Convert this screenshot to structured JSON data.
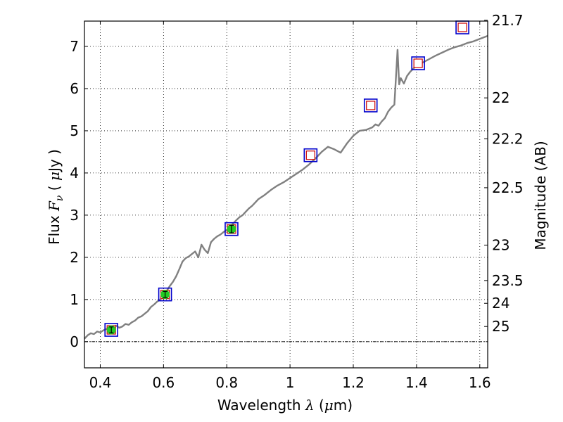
{
  "chart_data": {
    "type": "line",
    "title": "",
    "xlabel_text": "Wavelength",
    "xlabel_math": "λ",
    "xlabel_unit_open": " (",
    "xlabel_unit_math": "μ",
    "xlabel_unit_close": "m)",
    "ylabel_text": "Flux",
    "ylabel_math": "F",
    "ylabel_sub": "ν",
    "ylabel_unit_open": "( ",
    "ylabel_unit_math": "μ",
    "ylabel_unit_close": "Jy )",
    "y2label": "Magnitude (AB)",
    "xlim": [
      0.35,
      1.625
    ],
    "ylim": [
      -0.62,
      7.6
    ],
    "grid": true,
    "x_ticks": [
      0.4,
      0.6,
      0.8,
      1.0,
      1.2,
      1.4,
      1.6
    ],
    "x_tick_labels": [
      "0.4",
      "0.6",
      "0.8",
      "1",
      "1.2",
      "1.4",
      "1.6"
    ],
    "y_ticks": [
      0,
      1,
      2,
      3,
      4,
      5,
      6,
      7
    ],
    "y_tick_labels": [
      "0",
      "1",
      "2",
      "3",
      "4",
      "5",
      "6",
      "7"
    ],
    "y2_ticks": [
      {
        "label": "21.7",
        "flux": 7.62
      },
      {
        "label": "22",
        "flux": 5.78
      },
      {
        "label": "22.2",
        "flux": 4.81
      },
      {
        "label": "22.5",
        "flux": 3.65
      },
      {
        "label": "23",
        "flux": 2.29
      },
      {
        "label": "23.5",
        "flux": 1.45
      },
      {
        "label": "24",
        "flux": 0.91
      },
      {
        "label": "25",
        "flux": 0.36
      }
    ],
    "zero_line_y": 0,
    "colors": {
      "spectrum": "#808080",
      "model_box": "#0000cc",
      "model_inner": "#cc0000",
      "obs_fill": "#22cc22",
      "grid": "#000000",
      "axes": "#000000"
    },
    "series": [
      {
        "name": "model spectrum",
        "x": [
          0.35,
          0.36,
          0.37,
          0.38,
          0.39,
          0.4,
          0.41,
          0.42,
          0.43,
          0.44,
          0.45,
          0.46,
          0.47,
          0.48,
          0.49,
          0.5,
          0.51,
          0.52,
          0.53,
          0.54,
          0.55,
          0.56,
          0.57,
          0.58,
          0.59,
          0.6,
          0.61,
          0.62,
          0.63,
          0.64,
          0.65,
          0.66,
          0.67,
          0.68,
          0.69,
          0.7,
          0.71,
          0.72,
          0.73,
          0.74,
          0.75,
          0.76,
          0.77,
          0.78,
          0.79,
          0.8,
          0.81,
          0.82,
          0.83,
          0.84,
          0.85,
          0.86,
          0.87,
          0.88,
          0.89,
          0.9,
          0.92,
          0.94,
          0.96,
          0.98,
          1.0,
          1.02,
          1.04,
          1.06,
          1.08,
          1.1,
          1.12,
          1.14,
          1.16,
          1.18,
          1.2,
          1.22,
          1.24,
          1.26,
          1.27,
          1.28,
          1.29,
          1.3,
          1.31,
          1.32,
          1.33,
          1.34,
          1.345,
          1.35,
          1.36,
          1.37,
          1.38,
          1.4,
          1.42,
          1.44,
          1.46,
          1.48,
          1.5,
          1.52,
          1.54,
          1.56,
          1.58,
          1.6,
          1.625
        ],
        "values": [
          0.07,
          0.15,
          0.2,
          0.18,
          0.24,
          0.22,
          0.27,
          0.3,
          0.32,
          0.35,
          0.38,
          0.33,
          0.36,
          0.42,
          0.4,
          0.46,
          0.5,
          0.57,
          0.6,
          0.66,
          0.72,
          0.82,
          0.88,
          0.95,
          1.0,
          1.1,
          1.2,
          1.32,
          1.42,
          1.55,
          1.72,
          1.9,
          1.98,
          2.02,
          2.08,
          2.14,
          2.0,
          2.3,
          2.18,
          2.1,
          2.36,
          2.44,
          2.5,
          2.54,
          2.6,
          2.65,
          2.72,
          2.8,
          2.88,
          2.95,
          3.0,
          3.08,
          3.16,
          3.22,
          3.3,
          3.38,
          3.48,
          3.6,
          3.7,
          3.78,
          3.88,
          3.98,
          4.08,
          4.2,
          4.34,
          4.5,
          4.62,
          4.56,
          4.48,
          4.7,
          4.88,
          5.0,
          5.02,
          5.08,
          5.15,
          5.12,
          5.22,
          5.3,
          5.45,
          5.55,
          5.62,
          6.92,
          6.1,
          6.25,
          6.12,
          6.3,
          6.4,
          6.55,
          6.62,
          6.7,
          6.78,
          6.85,
          6.92,
          6.98,
          7.02,
          7.08,
          7.12,
          7.18,
          7.25
        ]
      },
      {
        "name": "model photometry",
        "x": [
          0.435,
          0.605,
          0.815,
          1.065,
          1.255,
          1.405,
          1.545
        ],
        "values": [
          0.28,
          1.12,
          2.67,
          4.42,
          5.6,
          6.6,
          7.45
        ]
      },
      {
        "name": "observed photometry",
        "x": [
          0.435,
          0.605,
          0.815
        ],
        "values": [
          0.28,
          1.12,
          2.67
        ],
        "errors": [
          0.07,
          0.07,
          0.09
        ]
      }
    ]
  }
}
